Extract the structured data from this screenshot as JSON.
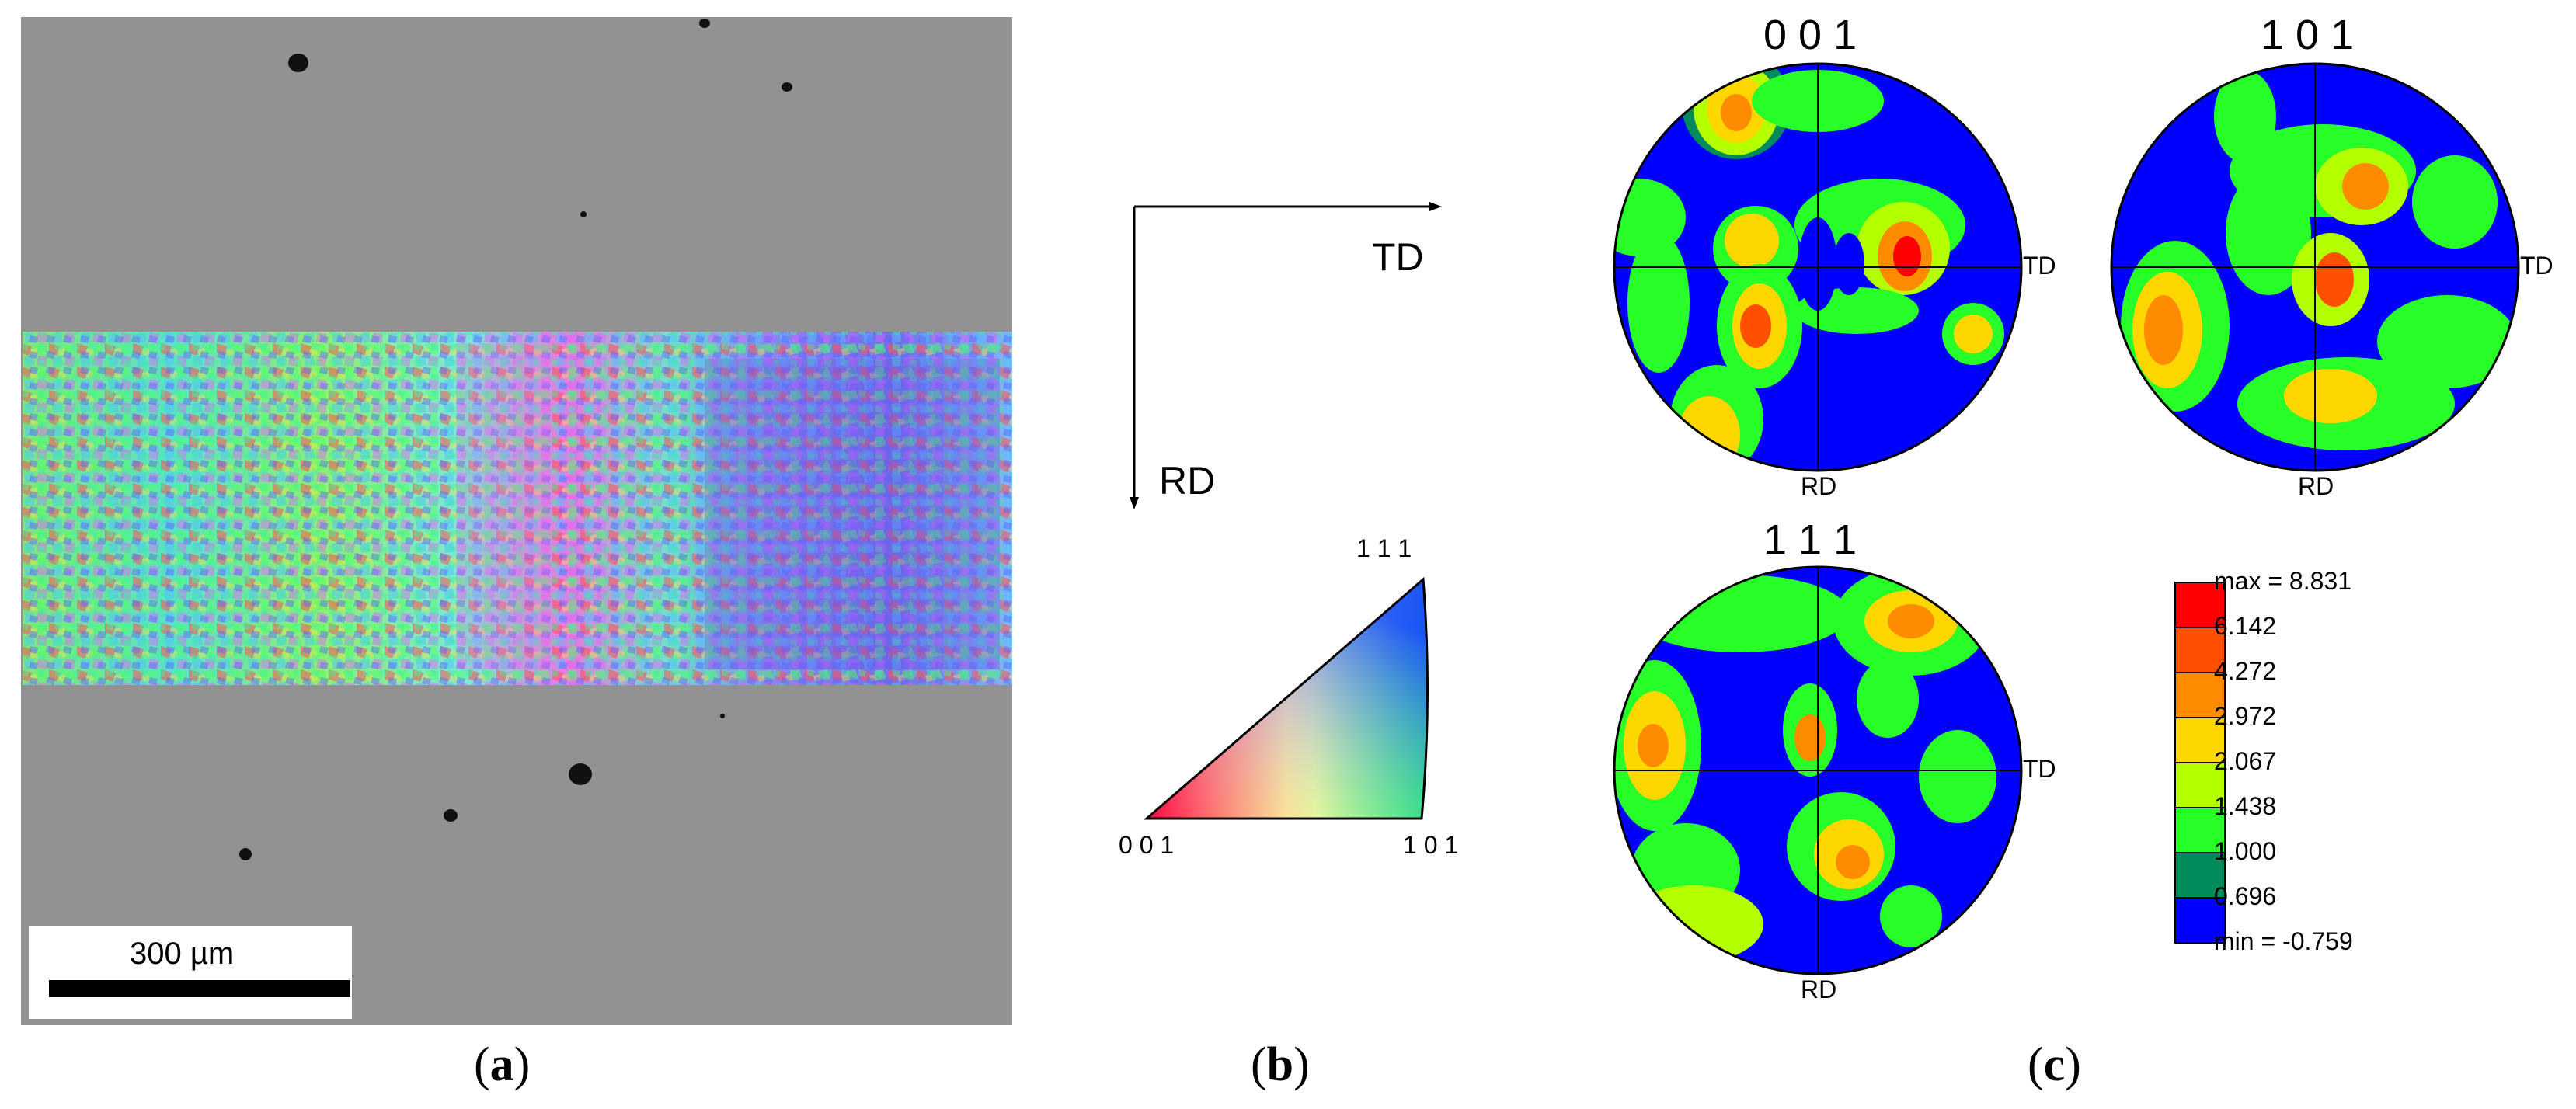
{
  "panel_a": {
    "label_letter": "a",
    "scale_bar_label": "300 µm"
  },
  "panel_b": {
    "label_letter": "b",
    "axis_td": "TD",
    "axis_rd": "RD",
    "ipf_key": {
      "corner_111": "1 1 1",
      "corner_001": "0 0 1",
      "corner_101": "1 0 1"
    }
  },
  "panel_c": {
    "label_letter": "c",
    "pole_figures": [
      {
        "title": "0 0 1",
        "right_label": "TD",
        "bottom_label": "RD"
      },
      {
        "title": "1 0 1",
        "right_label": "TD",
        "bottom_label": "RD"
      },
      {
        "title": "1 1 1",
        "right_label": "TD",
        "bottom_label": "RD"
      }
    ],
    "legend": {
      "levels": [
        "max = 8.831",
        "6.142",
        "4.272",
        "2.972",
        "2.067",
        "1.438",
        "1.000",
        "0.696",
        "min = -0.759"
      ],
      "colors": [
        "#ff0000",
        "#ff5000",
        "#ff8c00",
        "#ffd700",
        "#b4ff00",
        "#28ff28",
        "#008c5a",
        "#0000ff"
      ]
    }
  },
  "colors": {
    "background_gray": "#8f8f8f",
    "contour_blue": "#0000ff"
  }
}
